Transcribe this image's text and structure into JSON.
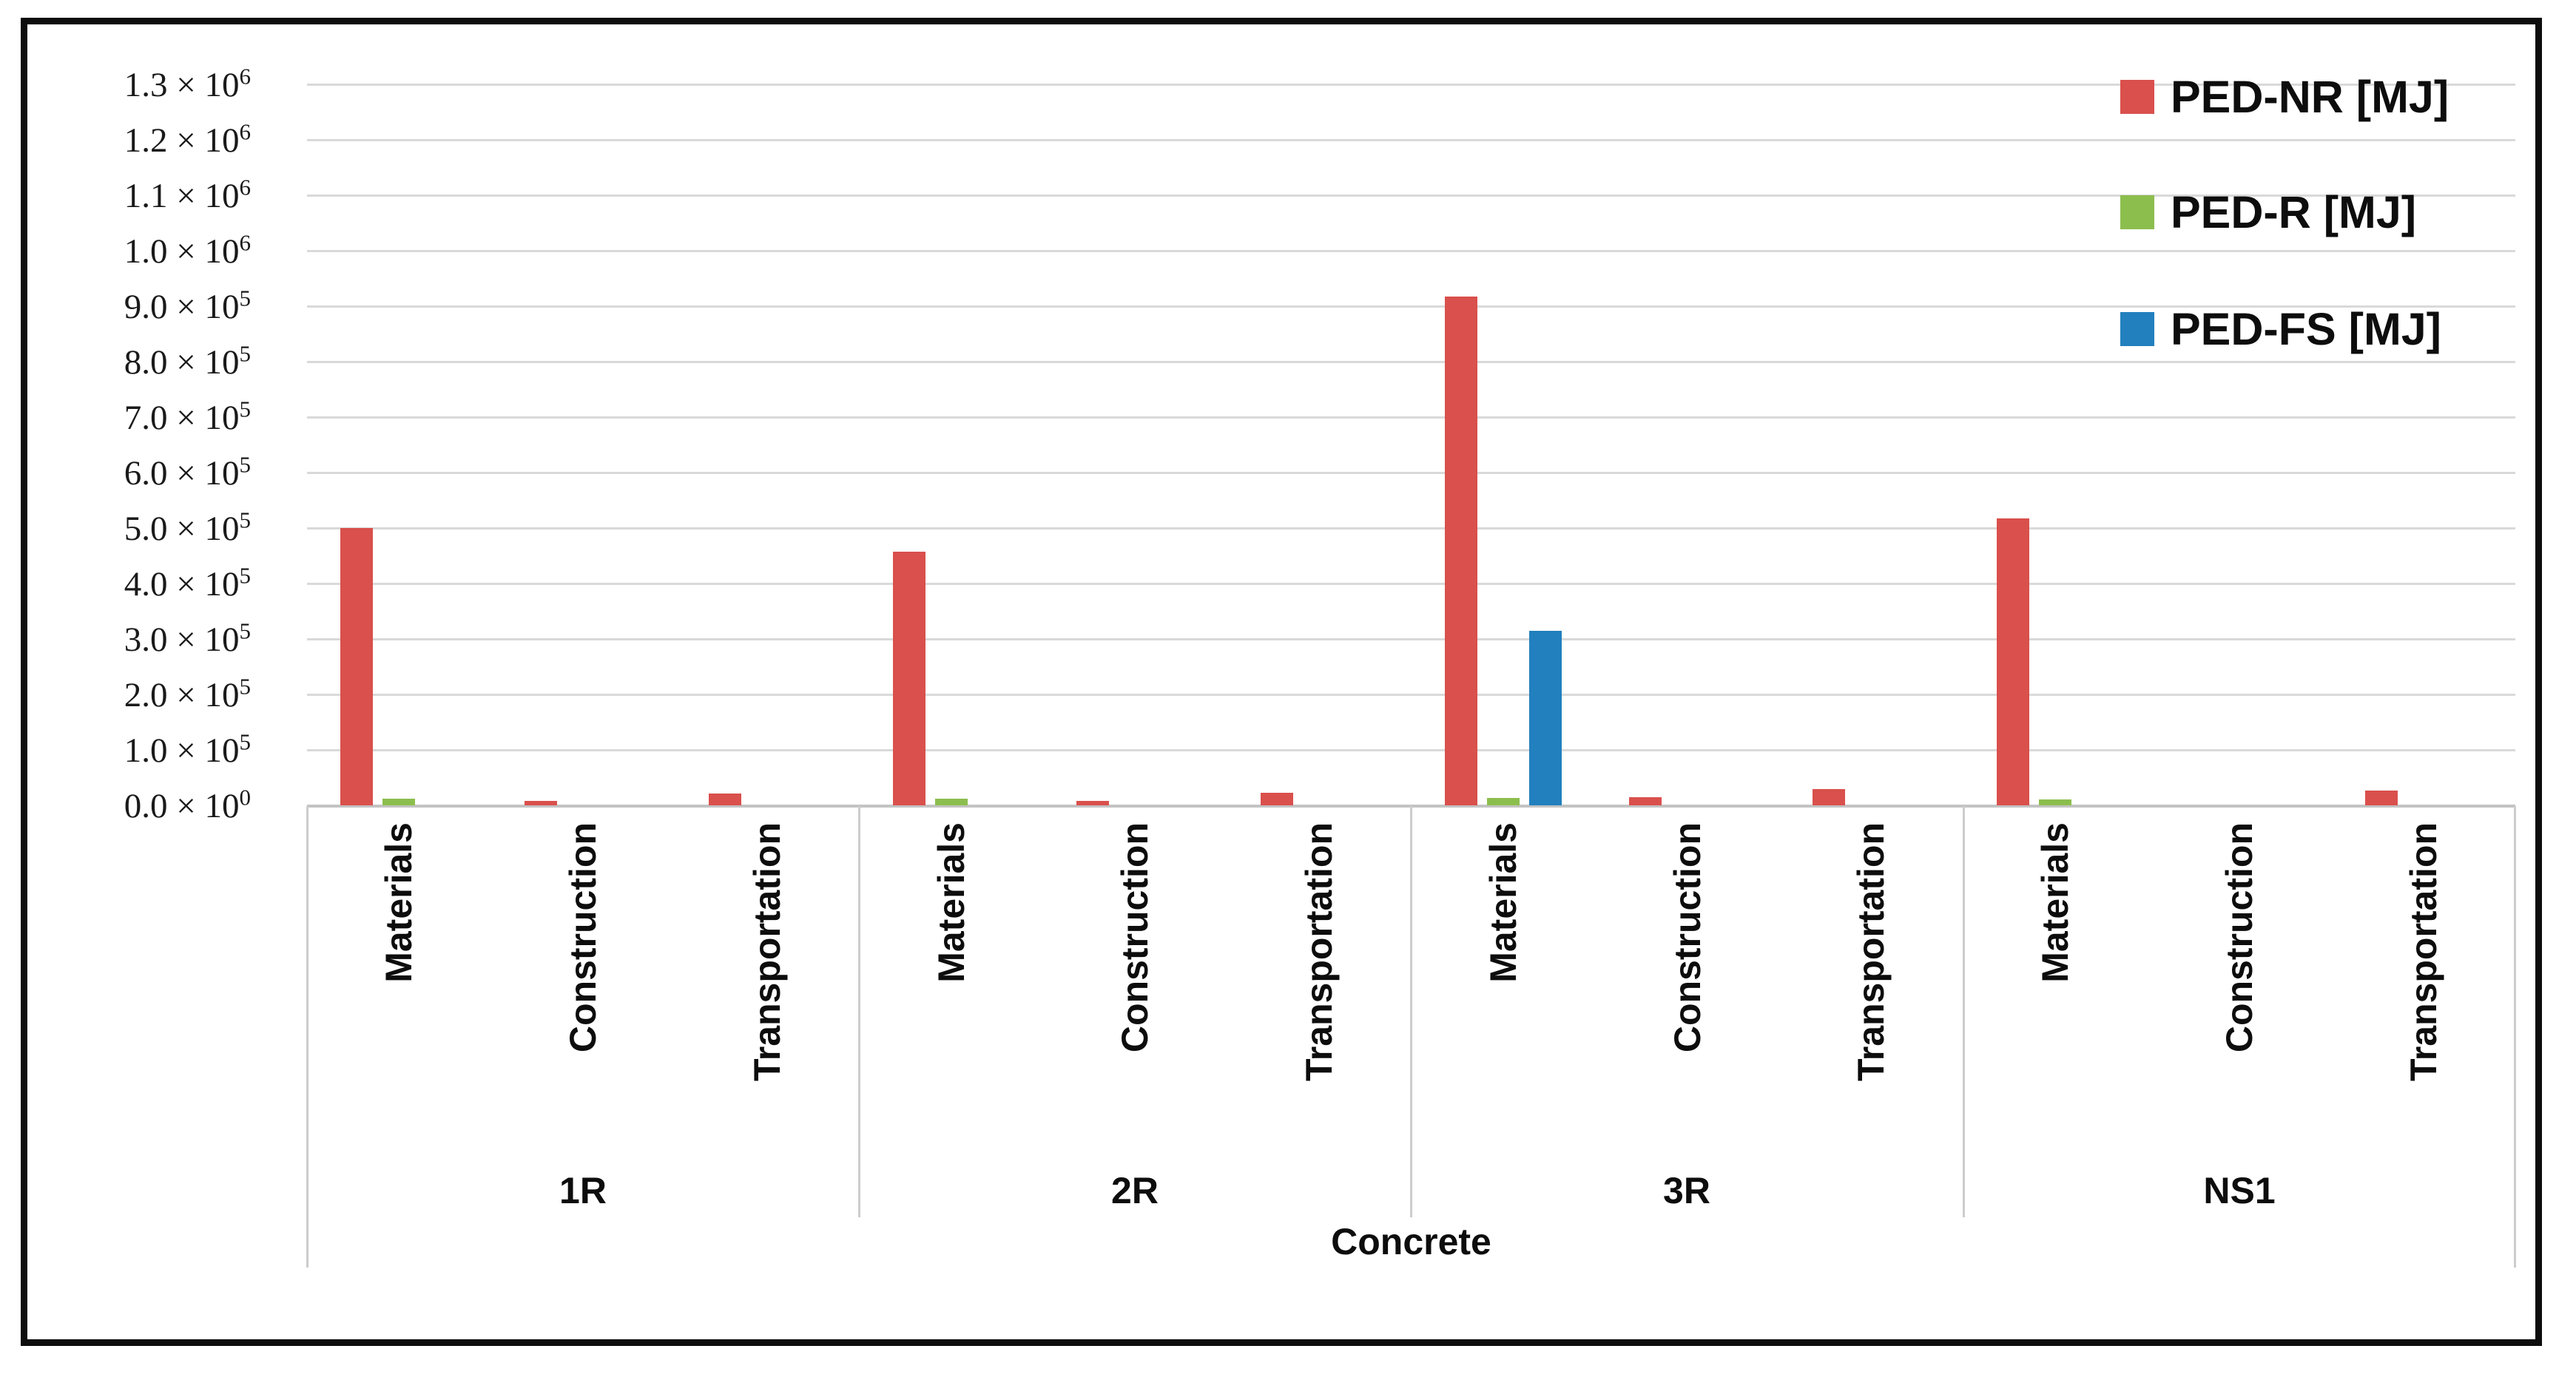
{
  "figure": {
    "background_color": "#ffffff",
    "border_color": "#0d0d0d"
  },
  "legend": {
    "items": [
      {
        "label": "PED-NR [MJ]",
        "color": "#d9504c"
      },
      {
        "label": "PED-R [MJ]",
        "color": "#8cbe4e"
      },
      {
        "label": "PED-FS [MJ]",
        "color": "#2280be"
      }
    ]
  },
  "chart_data": {
    "type": "bar",
    "title": "",
    "xlabel": "Concrete",
    "ylabel": "",
    "ylim": [
      0,
      1300000
    ],
    "grid": true,
    "legend_position": "top-right-inside",
    "y_ticks": [
      {
        "mantissa": "0.0",
        "exponent": "0",
        "value": 0
      },
      {
        "mantissa": "1.0",
        "exponent": "5",
        "value": 100000
      },
      {
        "mantissa": "2.0",
        "exponent": "5",
        "value": 200000
      },
      {
        "mantissa": "3.0",
        "exponent": "5",
        "value": 300000
      },
      {
        "mantissa": "4.0",
        "exponent": "5",
        "value": 400000
      },
      {
        "mantissa": "5.0",
        "exponent": "5",
        "value": 500000
      },
      {
        "mantissa": "6.0",
        "exponent": "5",
        "value": 600000
      },
      {
        "mantissa": "7.0",
        "exponent": "5",
        "value": 700000
      },
      {
        "mantissa": "8.0",
        "exponent": "5",
        "value": 800000
      },
      {
        "mantissa": "9.0",
        "exponent": "5",
        "value": 900000
      },
      {
        "mantissa": "1.0",
        "exponent": "6",
        "value": 1000000
      },
      {
        "mantissa": "1.1",
        "exponent": "6",
        "value": 1100000
      },
      {
        "mantissa": "1.2",
        "exponent": "6",
        "value": 1200000
      },
      {
        "mantissa": "1.3",
        "exponent": "6",
        "value": 1300000
      }
    ],
    "x": {
      "axis_title": "Concrete",
      "groups": [
        {
          "label": "1R",
          "categories": [
            "Materials",
            "Construction",
            "Transportation"
          ]
        },
        {
          "label": "2R",
          "categories": [
            "Materials",
            "Construction",
            "Transportation"
          ]
        },
        {
          "label": "3R",
          "categories": [
            "Materials",
            "Construction",
            "Transportation"
          ]
        },
        {
          "label": "NS1",
          "categories": [
            "Materials",
            "Construction",
            "Transportation"
          ]
        }
      ]
    },
    "series": [
      {
        "name": "PED-NR [MJ]",
        "color": "#d9504c",
        "values": [
          [
            500000,
            8000,
            22000
          ],
          [
            458000,
            8000,
            23000
          ],
          [
            918000,
            15000,
            30000
          ],
          [
            518000,
            0,
            27000
          ]
        ]
      },
      {
        "name": "PED-R [MJ]",
        "color": "#8cbe4e",
        "values": [
          [
            12000,
            0,
            0
          ],
          [
            12000,
            0,
            0
          ],
          [
            13000,
            0,
            0
          ],
          [
            11000,
            0,
            0
          ]
        ]
      },
      {
        "name": "PED-FS [MJ]",
        "color": "#2280be",
        "values": [
          [
            0,
            0,
            0
          ],
          [
            0,
            0,
            0
          ],
          [
            315000,
            0,
            0
          ],
          [
            0,
            0,
            0
          ]
        ]
      }
    ]
  }
}
